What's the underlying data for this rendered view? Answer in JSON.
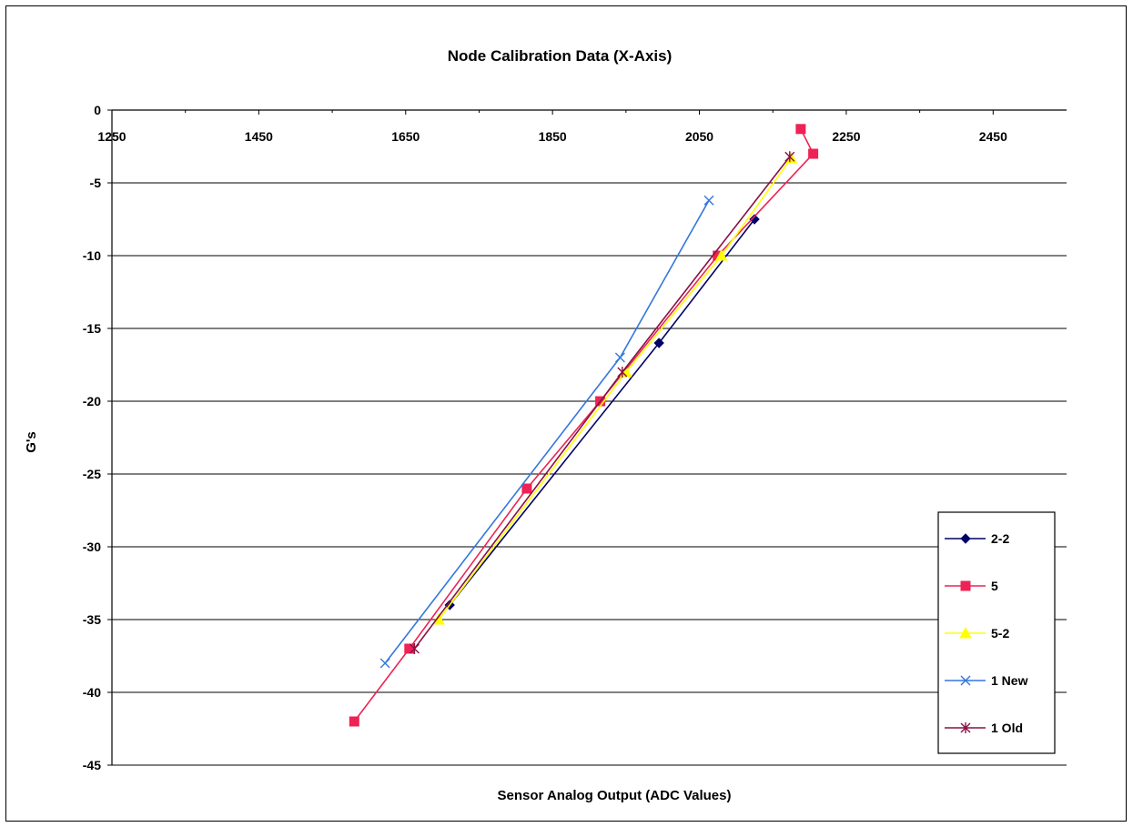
{
  "chart_data": {
    "type": "line",
    "title": "Node Calibration Data (X-Axis)",
    "xlabel": "Sensor Analog Output  (ADC Values)",
    "ylabel": "G's",
    "xlim": [
      1250,
      2550
    ],
    "ylim": [
      -45,
      0
    ],
    "xticks": [
      "1250",
      "1450",
      "1650",
      "1850",
      "2050",
      "2250",
      "2450"
    ],
    "yticks": [
      "0",
      "-5",
      "-10",
      "-15",
      "-20",
      "-25",
      "-30",
      "-35",
      "-40",
      "-45"
    ],
    "grid": "horizontal",
    "legend_position": "bottom-right",
    "series": [
      {
        "name": "2-2",
        "color": "#000066",
        "marker": "diamond",
        "points": [
          [
            1710,
            -34
          ],
          [
            1995,
            -16
          ],
          [
            2125,
            -7.5
          ]
        ]
      },
      {
        "name": "5",
        "color": "#ee2255",
        "marker": "square",
        "points": [
          [
            1580,
            -42
          ],
          [
            1655,
            -37
          ],
          [
            1815,
            -26
          ],
          [
            1915,
            -20
          ],
          [
            2075,
            -10
          ],
          [
            2205,
            -3
          ],
          [
            2188,
            -1.3
          ]
        ]
      },
      {
        "name": "5-2",
        "color": "#ffff00",
        "marker": "triangle",
        "points": [
          [
            1695,
            -35
          ],
          [
            1950,
            -18
          ],
          [
            2080,
            -10
          ],
          [
            2175,
            -3.3
          ]
        ]
      },
      {
        "name": "1 New",
        "color": "#3377dd",
        "marker": "x",
        "points": [
          [
            1622,
            -38
          ],
          [
            1942,
            -17
          ],
          [
            2063,
            -6.2
          ]
        ]
      },
      {
        "name": "1 Old",
        "color": "#881144",
        "marker": "star",
        "points": [
          [
            1662,
            -37
          ],
          [
            1945,
            -18
          ],
          [
            2173,
            -3.2
          ]
        ]
      }
    ]
  }
}
